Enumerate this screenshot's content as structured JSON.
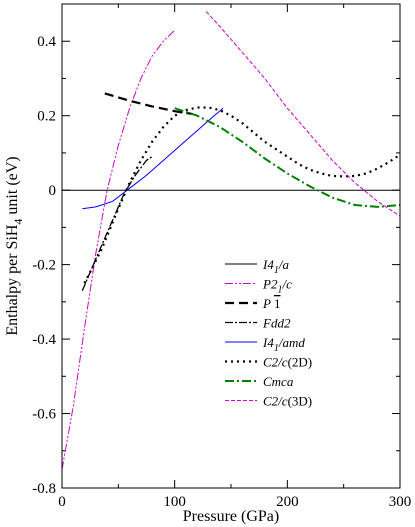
{
  "chart_data": {
    "type": "line",
    "xlabel": "Pressure (GPa)",
    "ylabel": {
      "prefix": "Enthalpy per SiH",
      "sub": "4",
      "suffix": " unit (eV)"
    },
    "xlim": [
      0,
      300
    ],
    "ylim": [
      -0.8,
      0.5
    ],
    "xticks": [
      0,
      100,
      200,
      300
    ],
    "yticks": [
      -0.8,
      -0.6,
      -0.4,
      -0.2,
      0,
      0.2,
      0.4
    ],
    "ytick_labels": [
      "-0.8",
      "-0.6",
      "-0.4",
      "-0.2",
      "0",
      "0.2",
      "0.4"
    ],
    "reference_line": 0,
    "legend_placement": "center-right",
    "series": [
      {
        "id": "i41a",
        "name": "I4₁/a",
        "legend_parts": [
          [
            "I4",
            ""
          ],
          [
            "1",
            "sub"
          ],
          [
            "/a",
            ""
          ]
        ],
        "color": "#000000",
        "dash": "",
        "width": 1,
        "x": [
          0,
          300
        ],
        "y": [
          0,
          0
        ]
      },
      {
        "id": "p21c",
        "name": "P2₁/c",
        "legend_parts": [
          [
            "P2",
            ""
          ],
          [
            "1",
            "sub"
          ],
          [
            "/c",
            ""
          ]
        ],
        "color": "#cc00cc",
        "dash": "8,2,2,2,2,2",
        "width": 1,
        "x": [
          0,
          10,
          20,
          30,
          40,
          50,
          60,
          70,
          80,
          90,
          100
        ],
        "y": [
          -0.75,
          -0.58,
          -0.37,
          -0.17,
          0.0,
          0.12,
          0.22,
          0.3,
          0.36,
          0.4,
          0.43
        ]
      },
      {
        "id": "p1bar",
        "name": "P 1",
        "legend_parts": [
          [
            "P ",
            ""
          ],
          [
            "1",
            "bar"
          ]
        ],
        "color": "#000000",
        "dash": "9,5",
        "width": 2.2,
        "x": [
          38,
          60,
          80,
          100,
          115
        ],
        "y": [
          0.26,
          0.24,
          0.225,
          0.212,
          0.205
        ]
      },
      {
        "id": "fdd2",
        "name": "Fdd2",
        "legend_parts": [
          [
            "Fdd2",
            ""
          ]
        ],
        "color": "#000000",
        "dash": "8,2,2,2",
        "width": 1.3,
        "x": [
          18,
          25,
          35,
          45,
          55,
          65,
          75,
          80
        ],
        "y": [
          -0.27,
          -0.22,
          -0.15,
          -0.08,
          -0.01,
          0.04,
          0.08,
          0.09
        ]
      },
      {
        "id": "i41amd",
        "name": "I4₁/amd",
        "legend_parts": [
          [
            "I4",
            ""
          ],
          [
            "1",
            "sub"
          ],
          [
            "/amd",
            ""
          ]
        ],
        "color": "#0000ff",
        "dash": "",
        "width": 1,
        "x": [
          18,
          30,
          45,
          60,
          75,
          90,
          105,
          120,
          135,
          143
        ],
        "y": [
          -0.05,
          -0.045,
          -0.03,
          0.005,
          0.04,
          0.08,
          0.12,
          0.16,
          0.2,
          0.22
        ]
      },
      {
        "id": "c2c2d",
        "name": "C2/c(2D)",
        "legend_parts": [
          [
            "C2/c",
            ""
          ],
          [
            "(2D)",
            "upright"
          ]
        ],
        "color": "#000000",
        "dash": "2,4",
        "width": 2.2,
        "x": [
          20,
          35,
          50,
          60,
          70,
          80,
          90,
          100,
          110,
          120,
          130,
          140,
          150,
          160,
          170,
          180,
          190,
          200,
          210,
          220,
          230,
          240,
          250,
          260,
          270,
          280,
          290,
          300
        ],
        "y": [
          -0.25,
          -0.16,
          -0.05,
          0.02,
          0.08,
          0.13,
          0.17,
          0.2,
          0.215,
          0.222,
          0.222,
          0.215,
          0.2,
          0.18,
          0.155,
          0.13,
          0.11,
          0.09,
          0.07,
          0.055,
          0.045,
          0.038,
          0.037,
          0.038,
          0.045,
          0.058,
          0.075,
          0.095
        ]
      },
      {
        "id": "cmca",
        "name": "Cmca",
        "legend_parts": [
          [
            "Cmca",
            ""
          ]
        ],
        "color": "#008000",
        "dash": "9,3,2,3",
        "width": 2,
        "x": [
          100,
          120,
          140,
          160,
          180,
          200,
          220,
          240,
          260,
          280,
          300
        ],
        "y": [
          0.22,
          0.2,
          0.17,
          0.13,
          0.085,
          0.045,
          0.01,
          -0.02,
          -0.04,
          -0.045,
          -0.04
        ]
      },
      {
        "id": "c2c3d",
        "name": "C2/c(3D)",
        "legend_parts": [
          [
            "C2/c",
            ""
          ],
          [
            "(3D)",
            "upright"
          ]
        ],
        "color": "#cc00cc",
        "dash": "4,2",
        "width": 1,
        "x": [
          128,
          140,
          160,
          180,
          200,
          220,
          240,
          260,
          280,
          300
        ],
        "y": [
          0.48,
          0.44,
          0.37,
          0.3,
          0.22,
          0.15,
          0.08,
          0.02,
          -0.03,
          -0.07
        ]
      }
    ]
  }
}
